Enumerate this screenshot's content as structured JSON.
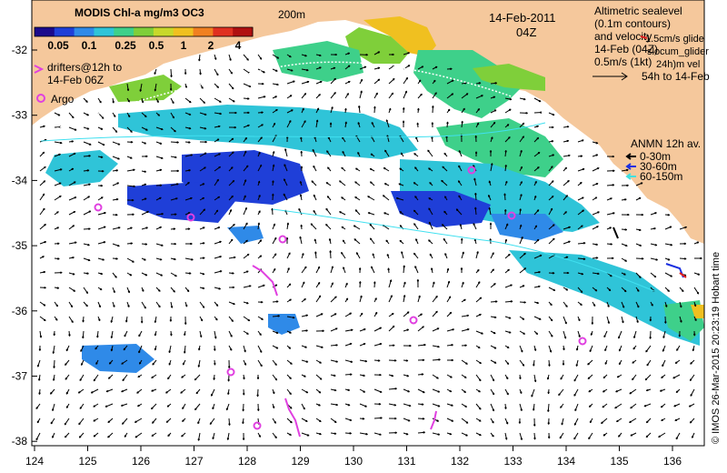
{
  "colorbar": {
    "title": "MODIS Chl-a mg/m3 OC3",
    "ticks": [
      "0.05",
      "0.1",
      "0.25",
      "0.5",
      "1",
      "2",
      "4"
    ],
    "colors": [
      "#1a0a8c",
      "#1f3fd8",
      "#2f8ae8",
      "#2fc4d8",
      "#3ed08a",
      "#7fcf3a",
      "#c8d82a",
      "#f0c020",
      "#f08020",
      "#e03020",
      "#b01010"
    ]
  },
  "date_label": "14-Feb-2011",
  "time_label": "04Z",
  "isobath_label": "200m",
  "legend_left": {
    "drifters_line1": "drifters@12h to",
    "drifters_line2": "14-Feb 06Z",
    "argo": "Argo"
  },
  "legend_right": {
    "line1": "Altimetric sealevel",
    "line2": "(0.1m contours)",
    "line3": "and velocity",
    "glider_line1": "1.5cm/s glide",
    "glider_line2": "slocum_glider",
    "line4": "14-Feb (04Z)",
    "line5": "0.5m/s (1kt)",
    "vel_line1": "24h)m vel",
    "vel_line2": "54h to 14-Feb"
  },
  "anmn_legend": {
    "title": "ANMN 12h av.",
    "items": [
      {
        "label": "0-30m",
        "color": "#000000"
      },
      {
        "label": "30-60m",
        "color": "#1a2fe0"
      },
      {
        "label": "60-150m",
        "color": "#40e0e0"
      }
    ]
  },
  "credit": "© IMOS 26-Mar-2015 20:23:19 Hobart time",
  "x_ticks": [
    "124",
    "125",
    "126",
    "127",
    "128",
    "129",
    "130",
    "131",
    "132",
    "133",
    "134",
    "135",
    "136"
  ],
  "y_ticks": [
    "-32",
    "-33",
    "-34",
    "-35",
    "-36",
    "-37",
    "-38"
  ],
  "colors": {
    "land": "#f5c89c",
    "argo": "#e040e0",
    "drifter": "#e040e0",
    "contour": "#40e0f0"
  }
}
